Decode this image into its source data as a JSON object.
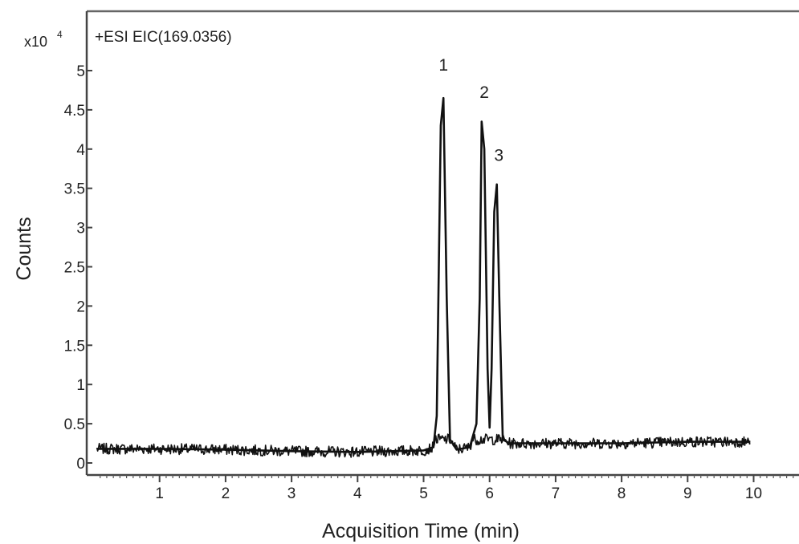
{
  "chart_data": {
    "type": "line",
    "title": "+ESI EIC(169.0356)",
    "xlabel": "Acquisition Time (min)",
    "ylabel": "Counts",
    "y_multiplier": {
      "base": "x10",
      "exponent": "4"
    },
    "xlim": [
      0,
      10.7
    ],
    "ylim": [
      -0.1,
      5.4
    ],
    "x_ticks": [
      1,
      2,
      3,
      4,
      5,
      6,
      7,
      8,
      9,
      10
    ],
    "x_tick_labels": [
      "1",
      "2",
      "3",
      "4",
      "5",
      "6",
      "7",
      "8",
      "9",
      "10"
    ],
    "y_ticks": [
      0,
      0.5,
      1,
      1.5,
      2,
      2.5,
      3,
      3.5,
      4,
      4.5,
      5
    ],
    "y_tick_labels": [
      "0",
      "0.5",
      "1",
      "1.5",
      "2",
      "2.5",
      "3",
      "3.5",
      "4",
      "4.5",
      "5"
    ],
    "grid": false,
    "trace_color": "#111111",
    "series": [
      {
        "x": [
          0.05,
          1.0,
          2.0,
          3.0,
          4.0,
          5.0,
          5.15,
          5.2,
          5.26,
          5.3,
          5.35,
          5.4,
          5.5,
          5.7,
          5.8,
          5.85,
          5.88,
          5.92,
          5.97,
          6.0,
          6.03,
          6.07,
          6.11,
          6.15,
          6.2,
          6.3,
          7.0,
          8.0,
          9.0,
          9.95
        ],
        "y": [
          0.18,
          0.18,
          0.17,
          0.15,
          0.14,
          0.16,
          0.2,
          0.6,
          4.3,
          4.65,
          2.1,
          0.3,
          0.17,
          0.2,
          0.5,
          2.1,
          4.35,
          4.0,
          1.2,
          0.45,
          1.2,
          3.2,
          3.55,
          2.0,
          0.3,
          0.25,
          0.25,
          0.25,
          0.27,
          0.27
        ]
      }
    ],
    "annotations": [
      {
        "text": "1",
        "x": 5.3,
        "y": 5.0
      },
      {
        "text": "2",
        "x": 5.92,
        "y": 4.65
      },
      {
        "text": "3",
        "x": 6.14,
        "y": 3.85
      }
    ]
  }
}
